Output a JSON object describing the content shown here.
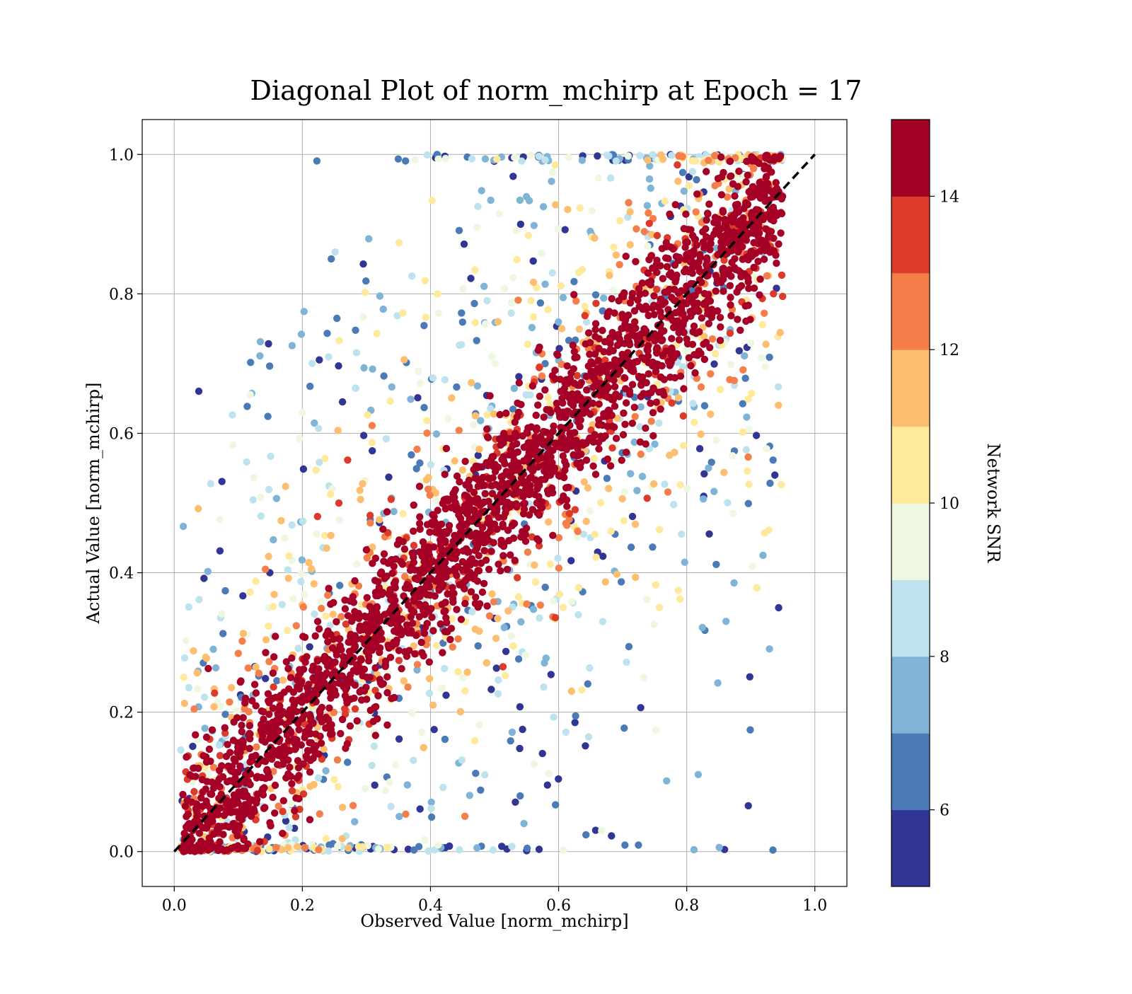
{
  "chart_data": {
    "type": "scatter",
    "title": "Diagonal Plot of norm_mchirp at Epoch = 17",
    "xlabel": "Observed Value [norm_mchirp]",
    "ylabel": "Actual Value [norm_mchirp]",
    "xlim": [
      -0.05,
      1.05
    ],
    "ylim": [
      -0.05,
      1.05
    ],
    "x_ticks": [
      0.0,
      0.2,
      0.4,
      0.6,
      0.8,
      1.0
    ],
    "y_ticks": [
      0.0,
      0.2,
      0.4,
      0.6,
      0.8,
      1.0
    ],
    "x_tick_labels": [
      "0.0",
      "0.2",
      "0.4",
      "0.6",
      "0.8",
      "1.0"
    ],
    "y_tick_labels": [
      "0.0",
      "0.2",
      "0.4",
      "0.6",
      "0.8",
      "1.0"
    ],
    "grid": true,
    "reference_line": {
      "style": "dashed",
      "color": "#000000",
      "from": [
        0.0,
        0.0
      ],
      "to": [
        1.0,
        1.0
      ]
    },
    "point_distribution": {
      "x_range": [
        0.01,
        0.95
      ],
      "y_range": [
        0.0,
        1.0
      ],
      "high_snr_band_half_width": 0.08,
      "spread_increases_as_snr_decreases": true
    },
    "colorbar": {
      "label": "Network SNR",
      "range": [
        5,
        15
      ],
      "ticks": [
        6,
        8,
        10,
        12,
        14
      ],
      "tick_labels": [
        "6",
        "8",
        "10",
        "12",
        "14"
      ],
      "levels": [
        {
          "from": 5,
          "to": 6,
          "color": "#313695"
        },
        {
          "from": 6,
          "to": 7,
          "color": "#4a7bb7"
        },
        {
          "from": 7,
          "to": 8,
          "color": "#7fb4d6"
        },
        {
          "from": 8,
          "to": 9,
          "color": "#bfe3ee"
        },
        {
          "from": 9,
          "to": 10,
          "color": "#eef7e0"
        },
        {
          "from": 10,
          "to": 11,
          "color": "#fee99c"
        },
        {
          "from": 11,
          "to": 12,
          "color": "#fdbe6f"
        },
        {
          "from": 12,
          "to": 13,
          "color": "#f57f4b"
        },
        {
          "from": 13,
          "to": 14,
          "color": "#dc3b2c"
        },
        {
          "from": 14,
          "to": 15,
          "color": "#a50026"
        }
      ]
    }
  }
}
